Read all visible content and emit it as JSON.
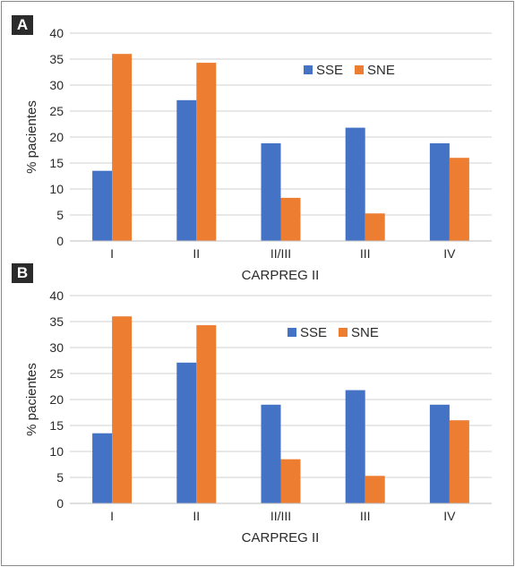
{
  "chart_data": [
    {
      "panel_label": "A",
      "type": "bar",
      "categories": [
        "I",
        "II",
        "II/III",
        "III",
        "IV"
      ],
      "series": [
        {
          "name": "SSE",
          "color": "#4472c4",
          "values": [
            13.5,
            27.1,
            18.8,
            21.8,
            18.8
          ]
        },
        {
          "name": "SNE",
          "color": "#ed7d31",
          "values": [
            36.0,
            34.3,
            8.3,
            5.3,
            16.0
          ]
        }
      ],
      "xlabel": "CARPREG II",
      "ylabel": "% pacientes",
      "ylim": [
        0,
        40
      ],
      "yticks": [
        0,
        5,
        10,
        15,
        20,
        25,
        30,
        35,
        40
      ],
      "grid": true,
      "legend_position": "top-right"
    },
    {
      "panel_label": "B",
      "type": "bar",
      "categories": [
        "I",
        "II",
        "II/III",
        "III",
        "IV"
      ],
      "series": [
        {
          "name": "SSE",
          "color": "#4472c4",
          "values": [
            13.5,
            27.1,
            19.0,
            21.8,
            19.0
          ]
        },
        {
          "name": "SNE",
          "color": "#ed7d31",
          "values": [
            36.0,
            34.3,
            8.5,
            5.3,
            16.0
          ]
        }
      ],
      "xlabel": "CARPREG II",
      "ylabel": "% pacientes",
      "ylim": [
        0,
        40
      ],
      "yticks": [
        0,
        5,
        10,
        15,
        20,
        25,
        30,
        35,
        40
      ],
      "grid": true,
      "legend_position": "top-right"
    }
  ]
}
